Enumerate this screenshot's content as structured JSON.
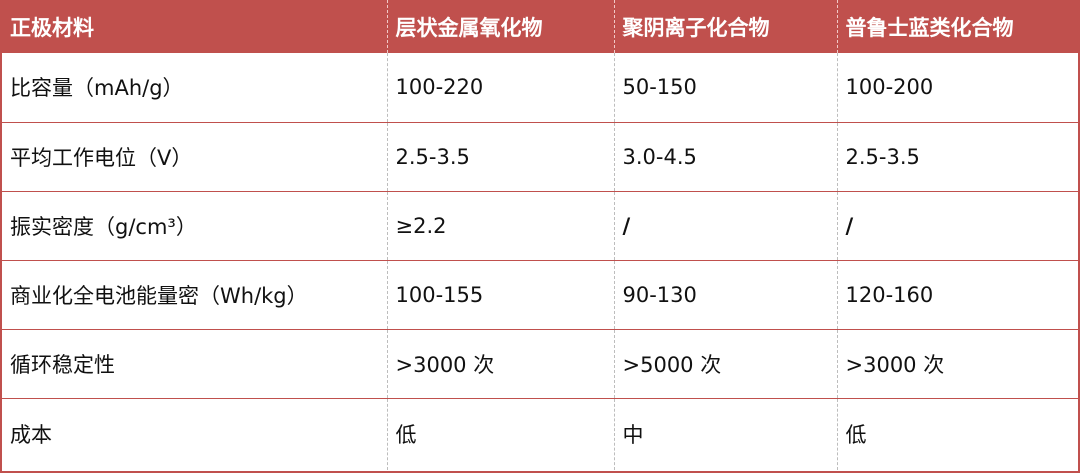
{
  "table": {
    "headers": [
      "正极材料",
      "层状金属氧化物",
      "聚阴离子化合物",
      "普鲁士蓝类化合物"
    ],
    "rows": [
      {
        "label": "比容量（mAh/g）",
        "values": [
          "100-220",
          "50-150",
          "100-200"
        ]
      },
      {
        "label": "平均工作电位（V）",
        "values": [
          "2.5-3.5",
          "3.0-4.5",
          "2.5-3.5"
        ]
      },
      {
        "label": "振实密度（g/cm³）",
        "values": [
          "≥2.2",
          "/",
          "/"
        ]
      },
      {
        "label": "商业化全电池能量密（Wh/kg）",
        "values": [
          "100-155",
          "90-130",
          "120-160"
        ]
      },
      {
        "label": "循环稳定性",
        "values": [
          ">3000 次",
          ">5000 次",
          ">3000 次"
        ]
      },
      {
        "label": "成本",
        "values": [
          "低",
          "中",
          "低"
        ]
      }
    ]
  },
  "colors": {
    "header_bg": "#c0504d",
    "header_text": "#ffffff",
    "row_divider": "#c0504d"
  }
}
